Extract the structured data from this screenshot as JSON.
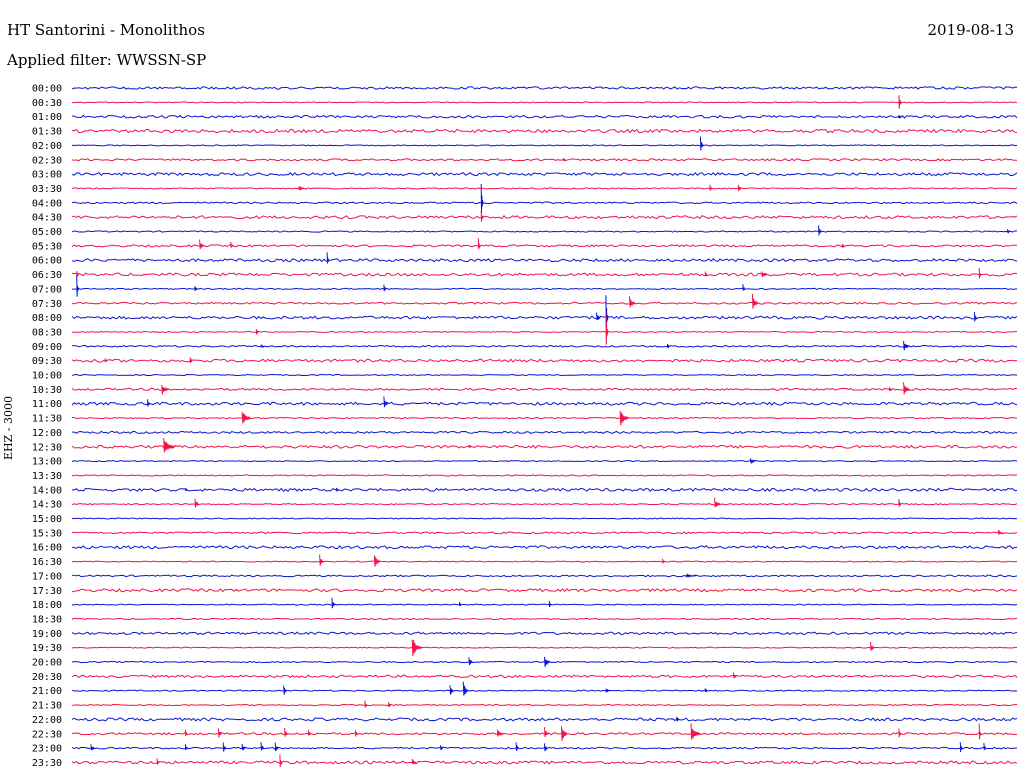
{
  "header": {
    "station_title": "HT Santorini - Monolithos",
    "date": "2019-08-13",
    "filter_label": "Applied filter: WWSSN-SP"
  },
  "chart_data": {
    "type": "line",
    "title": "HT Santorini - Monolithos",
    "subtitle": "Applied filter: WWSSN-SP",
    "ylabel": "EHZ - 3000",
    "xlabel": "",
    "colors": {
      "even": "#0a14d6",
      "odd": "#f0144a"
    },
    "rows": [
      "00:00",
      "00:30",
      "01:00",
      "01:30",
      "02:00",
      "02:30",
      "03:00",
      "03:30",
      "04:00",
      "04:30",
      "05:00",
      "05:30",
      "06:00",
      "06:30",
      "07:00",
      "07:30",
      "08:00",
      "08:30",
      "09:00",
      "09:30",
      "10:00",
      "10:30",
      "11:00",
      "11:30",
      "12:00",
      "12:30",
      "13:00",
      "13:30",
      "14:00",
      "14:30",
      "15:00",
      "15:30",
      "16:00",
      "16:30",
      "17:00",
      "17:30",
      "18:00",
      "18:30",
      "19:00",
      "19:30",
      "20:00",
      "20:30",
      "21:00",
      "21:30",
      "22:00",
      "22:30",
      "23:00",
      "23:30"
    ],
    "noise": [
      1.2,
      0.5,
      1.2,
      1.6,
      0.5,
      1.0,
      1.4,
      0.6,
      0.8,
      1.4,
      0.6,
      1.0,
      1.4,
      1.4,
      0.6,
      0.9,
      1.4,
      0.5,
      0.8,
      1.4,
      0.5,
      1.0,
      1.4,
      0.6,
      1.0,
      1.4,
      0.5,
      0.6,
      1.4,
      0.6,
      0.5,
      0.9,
      1.4,
      0.5,
      0.8,
      1.4,
      0.5,
      0.6,
      1.2,
      0.5,
      0.6,
      1.2,
      0.6,
      0.6,
      1.4,
      1.0,
      0.8,
      1.4
    ],
    "events": [
      {
        "row": 1,
        "t": 0.875,
        "amp": 11,
        "dur": 0.003
      },
      {
        "row": 2,
        "t": 0.875,
        "amp": 2,
        "dur": 0.002
      },
      {
        "row": 4,
        "t": 0.665,
        "amp": 10,
        "dur": 0.003
      },
      {
        "row": 5,
        "t": 0.52,
        "amp": 2,
        "dur": 0.002
      },
      {
        "row": 7,
        "t": 0.24,
        "amp": 3,
        "dur": 0.006
      },
      {
        "row": 7,
        "t": 0.675,
        "amp": 4,
        "dur": 0.002
      },
      {
        "row": 7,
        "t": 0.705,
        "amp": 5,
        "dur": 0.003
      },
      {
        "row": 8,
        "t": 0.433,
        "amp": 22,
        "dur": 0.001
      },
      {
        "row": 9,
        "t": 0.433,
        "amp": 8,
        "dur": 0.001
      },
      {
        "row": 10,
        "t": 0.79,
        "amp": 7,
        "dur": 0.003
      },
      {
        "row": 10,
        "t": 0.99,
        "amp": 3,
        "dur": 0.002
      },
      {
        "row": 11,
        "t": 0.135,
        "amp": 8,
        "dur": 0.004
      },
      {
        "row": 11,
        "t": 0.168,
        "amp": 4,
        "dur": 0.002
      },
      {
        "row": 11,
        "t": 0.43,
        "amp": 8,
        "dur": 0.002
      },
      {
        "row": 11,
        "t": 0.815,
        "amp": 3,
        "dur": 0.002
      },
      {
        "row": 12,
        "t": 0.27,
        "amp": 8,
        "dur": 0.002
      },
      {
        "row": 13,
        "t": 0.005,
        "amp": 4,
        "dur": 0.002
      },
      {
        "row": 13,
        "t": 0.67,
        "amp": 3,
        "dur": 0.002
      },
      {
        "row": 13,
        "t": 0.73,
        "amp": 4,
        "dur": 0.006
      },
      {
        "row": 13,
        "t": 0.96,
        "amp": 7,
        "dur": 0.002
      },
      {
        "row": 14,
        "t": 0.005,
        "amp": 14,
        "dur": 0.001
      },
      {
        "row": 14,
        "t": 0.13,
        "amp": 4,
        "dur": 0.002
      },
      {
        "row": 14,
        "t": 0.33,
        "amp": 6,
        "dur": 0.002
      },
      {
        "row": 14,
        "t": 0.71,
        "amp": 5,
        "dur": 0.002
      },
      {
        "row": 15,
        "t": 0.59,
        "amp": 7,
        "dur": 0.006
      },
      {
        "row": 15,
        "t": 0.72,
        "amp": 10,
        "dur": 0.006
      },
      {
        "row": 16,
        "t": 0.555,
        "amp": 6,
        "dur": 0.004
      },
      {
        "row": 16,
        "t": 0.565,
        "amp": 28,
        "dur": 0.001
      },
      {
        "row": 16,
        "t": 0.955,
        "amp": 8,
        "dur": 0.002
      },
      {
        "row": 17,
        "t": 0.195,
        "amp": 4,
        "dur": 0.002
      },
      {
        "row": 17,
        "t": 0.565,
        "amp": 28,
        "dur": 0.001
      },
      {
        "row": 18,
        "t": 0.2,
        "amp": 2,
        "dur": 0.003
      },
      {
        "row": 18,
        "t": 0.63,
        "amp": 3,
        "dur": 0.002
      },
      {
        "row": 18,
        "t": 0.88,
        "amp": 6,
        "dur": 0.006
      },
      {
        "row": 19,
        "t": 0.035,
        "amp": 3,
        "dur": 0.002
      },
      {
        "row": 19,
        "t": 0.125,
        "amp": 5,
        "dur": 0.002
      },
      {
        "row": 21,
        "t": 0.095,
        "amp": 7,
        "dur": 0.007
      },
      {
        "row": 21,
        "t": 0.865,
        "amp": 3,
        "dur": 0.002
      },
      {
        "row": 21,
        "t": 0.88,
        "amp": 8,
        "dur": 0.006
      },
      {
        "row": 22,
        "t": 0.08,
        "amp": 5,
        "dur": 0.002
      },
      {
        "row": 22,
        "t": 0.33,
        "amp": 8,
        "dur": 0.004
      },
      {
        "row": 23,
        "t": 0.18,
        "amp": 10,
        "dur": 0.009
      },
      {
        "row": 23,
        "t": 0.58,
        "amp": 10,
        "dur": 0.009
      },
      {
        "row": 25,
        "t": 0.097,
        "amp": 10,
        "dur": 0.012
      },
      {
        "row": 25,
        "t": 0.42,
        "amp": 2,
        "dur": 0.002
      },
      {
        "row": 26,
        "t": 0.718,
        "amp": 4,
        "dur": 0.005
      },
      {
        "row": 28,
        "t": 0.12,
        "amp": 2,
        "dur": 0.002
      },
      {
        "row": 28,
        "t": 0.28,
        "amp": 3,
        "dur": 0.002
      },
      {
        "row": 29,
        "t": 0.13,
        "amp": 8,
        "dur": 0.004
      },
      {
        "row": 29,
        "t": 0.68,
        "amp": 7,
        "dur": 0.006
      },
      {
        "row": 29,
        "t": 0.875,
        "amp": 7,
        "dur": 0.002
      },
      {
        "row": 31,
        "t": 0.98,
        "amp": 3,
        "dur": 0.005
      },
      {
        "row": 33,
        "t": 0.262,
        "amp": 9,
        "dur": 0.004
      },
      {
        "row": 33,
        "t": 0.32,
        "amp": 9,
        "dur": 0.006
      },
      {
        "row": 33,
        "t": 0.625,
        "amp": 3,
        "dur": 0.002
      },
      {
        "row": 34,
        "t": 0.65,
        "amp": 2,
        "dur": 0.01
      },
      {
        "row": 36,
        "t": 0.275,
        "amp": 7,
        "dur": 0.003
      },
      {
        "row": 36,
        "t": 0.41,
        "amp": 3,
        "dur": 0.002
      },
      {
        "row": 36,
        "t": 0.505,
        "amp": 4,
        "dur": 0.002
      },
      {
        "row": 39,
        "t": 0.36,
        "amp": 12,
        "dur": 0.01
      },
      {
        "row": 39,
        "t": 0.845,
        "amp": 6,
        "dur": 0.004
      },
      {
        "row": 40,
        "t": 0.42,
        "amp": 6,
        "dur": 0.004
      },
      {
        "row": 40,
        "t": 0.5,
        "amp": 7,
        "dur": 0.006
      },
      {
        "row": 41,
        "t": 0.7,
        "amp": 4,
        "dur": 0.003
      },
      {
        "row": 42,
        "t": 0.224,
        "amp": 8,
        "dur": 0.003
      },
      {
        "row": 42,
        "t": 0.4,
        "amp": 7,
        "dur": 0.004
      },
      {
        "row": 42,
        "t": 0.414,
        "amp": 12,
        "dur": 0.005
      },
      {
        "row": 42,
        "t": 0.565,
        "amp": 3,
        "dur": 0.004
      },
      {
        "row": 42,
        "t": 0.67,
        "amp": 3,
        "dur": 0.002
      },
      {
        "row": 43,
        "t": 0.31,
        "amp": 6,
        "dur": 0.002
      },
      {
        "row": 43,
        "t": 0.335,
        "amp": 4,
        "dur": 0.002
      },
      {
        "row": 44,
        "t": 0.64,
        "amp": 3,
        "dur": 0.002
      },
      {
        "row": 45,
        "t": 0.12,
        "amp": 4,
        "dur": 0.002
      },
      {
        "row": 45,
        "t": 0.155,
        "amp": 7,
        "dur": 0.003
      },
      {
        "row": 45,
        "t": 0.225,
        "amp": 6,
        "dur": 0.003
      },
      {
        "row": 45,
        "t": 0.25,
        "amp": 5,
        "dur": 0.003
      },
      {
        "row": 45,
        "t": 0.3,
        "amp": 5,
        "dur": 0.002
      },
      {
        "row": 45,
        "t": 0.45,
        "amp": 6,
        "dur": 0.006
      },
      {
        "row": 45,
        "t": 0.5,
        "amp": 9,
        "dur": 0.004
      },
      {
        "row": 45,
        "t": 0.518,
        "amp": 12,
        "dur": 0.006
      },
      {
        "row": 45,
        "t": 0.655,
        "amp": 11,
        "dur": 0.01
      },
      {
        "row": 45,
        "t": 0.875,
        "amp": 6,
        "dur": 0.002
      },
      {
        "row": 45,
        "t": 0.96,
        "amp": 10,
        "dur": 0.002
      },
      {
        "row": 46,
        "t": 0.02,
        "amp": 5,
        "dur": 0.004
      },
      {
        "row": 46,
        "t": 0.12,
        "amp": 4,
        "dur": 0.002
      },
      {
        "row": 46,
        "t": 0.16,
        "amp": 6,
        "dur": 0.003
      },
      {
        "row": 46,
        "t": 0.18,
        "amp": 5,
        "dur": 0.003
      },
      {
        "row": 46,
        "t": 0.2,
        "amp": 6,
        "dur": 0.003
      },
      {
        "row": 46,
        "t": 0.215,
        "amp": 6,
        "dur": 0.003
      },
      {
        "row": 46,
        "t": 0.39,
        "amp": 3,
        "dur": 0.002
      },
      {
        "row": 46,
        "t": 0.47,
        "amp": 7,
        "dur": 0.002
      },
      {
        "row": 46,
        "t": 0.5,
        "amp": 5,
        "dur": 0.003
      },
      {
        "row": 46,
        "t": 0.94,
        "amp": 8,
        "dur": 0.002
      },
      {
        "row": 46,
        "t": 0.965,
        "amp": 5,
        "dur": 0.002
      },
      {
        "row": 47,
        "t": 0.09,
        "amp": 6,
        "dur": 0.002
      },
      {
        "row": 47,
        "t": 0.22,
        "amp": 9,
        "dur": 0.002
      },
      {
        "row": 47,
        "t": 0.36,
        "amp": 4,
        "dur": 0.004
      }
    ]
  }
}
